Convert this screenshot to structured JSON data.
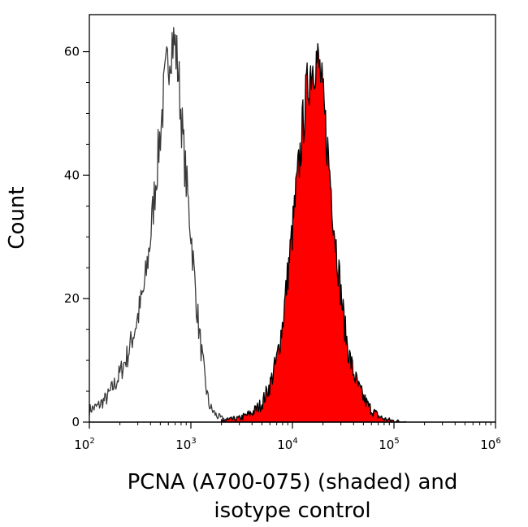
{
  "chart_data": {
    "type": "area",
    "title": "",
    "xlabel_lines": [
      "PCNA (A700-075) (shaded) and",
      "isotype control"
    ],
    "ylabel": "Count",
    "x_scale": "log",
    "xlim": [
      100,
      1000000
    ],
    "ylim": [
      0,
      66
    ],
    "x_ticks": [
      {
        "value": 100,
        "base": "10",
        "exp": "2"
      },
      {
        "value": 1000,
        "base": "10",
        "exp": "3"
      },
      {
        "value": 10000,
        "base": "10",
        "exp": "4"
      },
      {
        "value": 100000,
        "base": "10",
        "exp": "5"
      },
      {
        "value": 1000000,
        "base": "10",
        "exp": "6"
      }
    ],
    "y_ticks": [
      {
        "value": 0,
        "label": "0"
      },
      {
        "value": 20,
        "label": "20"
      },
      {
        "value": 40,
        "label": "40"
      },
      {
        "value": 60,
        "label": "60"
      }
    ],
    "grid": false,
    "legend": "none",
    "series": [
      {
        "style": "outline",
        "color": "#3a3a3a",
        "x": [
          100,
          120,
          150,
          190,
          240,
          300,
          350,
          400,
          450,
          500,
          550,
          600,
          650,
          700,
          750,
          800,
          850,
          900,
          1000,
          1100,
          1200,
          1300,
          1400,
          1500,
          1600,
          1700,
          1800,
          2000,
          2200,
          2500,
          3000,
          4000,
          6000,
          10000
        ],
        "y": [
          2,
          2.5,
          4,
          7,
          11,
          17,
          22,
          30,
          39,
          47,
          54,
          59,
          62,
          61,
          57,
          50,
          44,
          39,
          31,
          22,
          15,
          10,
          6,
          3,
          2,
          1.5,
          1,
          0.6,
          0.4,
          0.3,
          0.2,
          0.1,
          0.05,
          0
        ]
      },
      {
        "style": "filled",
        "color": "#ff0000",
        "x": [
          2000,
          3000,
          4000,
          5000,
          6000,
          7000,
          8000,
          9000,
          10000,
          11000,
          12000,
          13000,
          14000,
          15000,
          16000,
          17000,
          18000,
          19000,
          20000,
          22000,
          24000,
          26000,
          28000,
          30000,
          33000,
          36000,
          40000,
          45000,
          50000,
          55000,
          60000,
          70000,
          80000,
          100000,
          130000
        ],
        "y": [
          0.2,
          0.6,
          1.5,
          3,
          6,
          10,
          16,
          24,
          31,
          38,
          44,
          50,
          54,
          57,
          58,
          59,
          58,
          56,
          52,
          45,
          38,
          31,
          26,
          21,
          15,
          11,
          8,
          5.5,
          4,
          2.8,
          2,
          1,
          0.5,
          0.2,
          0
        ]
      }
    ]
  }
}
